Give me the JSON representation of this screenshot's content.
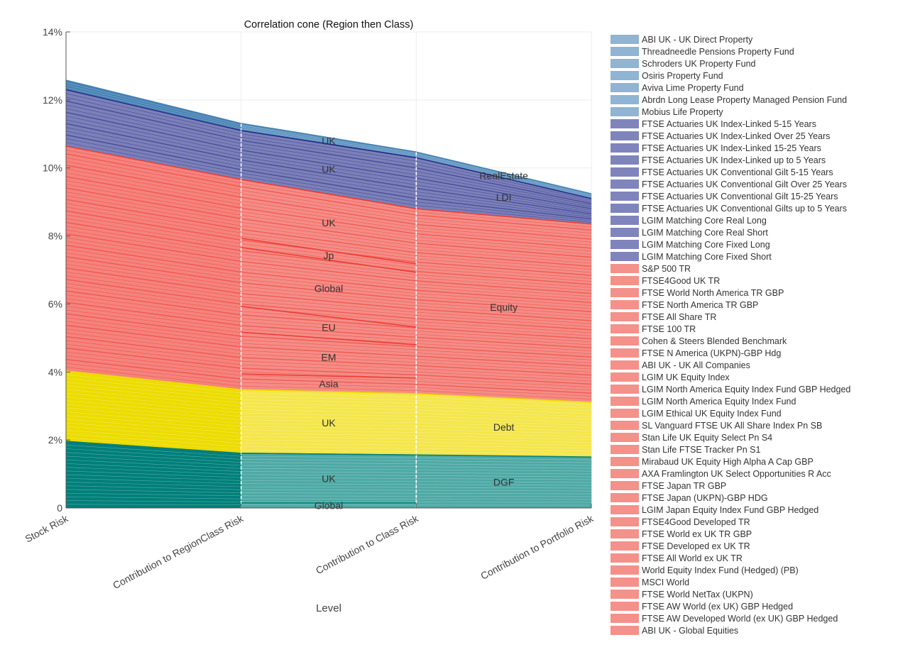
{
  "chart_data": {
    "type": "area",
    "stacked": true,
    "title": "Correlation cone (Region then Class)",
    "xlabel": "Level",
    "ylabel": "",
    "categories": [
      "Stock Risk",
      "Contribution to RegionClass Risk",
      "Contribution to Class Risk",
      "Contribution to Portfolio Risk"
    ],
    "ylim": [
      0,
      14
    ],
    "yticks": [
      0,
      2,
      4,
      6,
      8,
      10,
      12,
      14
    ],
    "ytick_labels": [
      "0",
      "2%",
      "4%",
      "6%",
      "8%",
      "10%",
      "12%",
      "14%"
    ],
    "grid": true,
    "legend_position": "right",
    "series": [
      {
        "name": "DGF",
        "color": "#007f7a",
        "color_light": "#4ea9a5",
        "values": [
          1.96,
          1.61,
          1.56,
          1.5
        ]
      },
      {
        "name": "Debt",
        "color": "#ecdc00",
        "color_light": "#f4e64c",
        "values": [
          2.07,
          1.87,
          1.8,
          1.61
        ]
      },
      {
        "name": "Equity",
        "color": "#f4837c",
        "color_light": "#f48c86",
        "line_color": "#ef3b33",
        "values": [
          6.61,
          6.18,
          5.44,
          5.24
        ]
      },
      {
        "name": "LDI",
        "color": "#7b80b8",
        "color_light": "#7b80b8",
        "line_color": "#262d86",
        "values": [
          1.66,
          1.44,
          1.5,
          0.75
        ]
      },
      {
        "name": "RealEstate",
        "color": "#4682b4",
        "color_light": "#5b93c0",
        "values": [
          0.28,
          0.21,
          0.17,
          0.14
        ]
      }
    ],
    "region_bands": [
      {
        "class": "DGF",
        "label": "Global",
        "values": [
          0.15,
          0.15
        ]
      },
      {
        "class": "DGF",
        "label": "UK",
        "values": [
          1.46,
          1.41
        ]
      },
      {
        "class": "Debt",
        "label": "UK",
        "values": [
          1.87,
          1.8
        ]
      },
      {
        "class": "Equity",
        "label": "Asia",
        "values": [
          0.46,
          0.46
        ]
      },
      {
        "class": "Equity",
        "label": "EM",
        "values": [
          1.23,
          0.98
        ]
      },
      {
        "class": "Equity",
        "label": "EU",
        "values": [
          0.76,
          0.52
        ]
      },
      {
        "class": "Equity",
        "label": "Global",
        "values": [
          1.73,
          1.61
        ]
      },
      {
        "class": "Equity",
        "label": "Jp",
        "values": [
          0.27,
          0.25
        ]
      },
      {
        "class": "Equity",
        "label": "UK",
        "values": [
          1.73,
          1.62
        ]
      },
      {
        "class": "LDI",
        "label": "UK",
        "values": [
          1.44,
          1.5
        ]
      },
      {
        "class": "RealEstate",
        "label": "UK",
        "values": [
          0.21,
          0.17
        ]
      }
    ],
    "legend": [
      {
        "label": "ABI UK - UK Direct Property",
        "color": "#8fb4d4"
      },
      {
        "label": "Threadneedle Pensions Property Fund",
        "color": "#8fb4d4"
      },
      {
        "label": "Schroders UK Property Fund",
        "color": "#8fb4d4"
      },
      {
        "label": "Osiris Property Fund",
        "color": "#8fb4d4"
      },
      {
        "label": "Aviva Lime Property Fund",
        "color": "#8fb4d4"
      },
      {
        "label": "Abrdn Long Lease Property Managed Pension Fund",
        "color": "#8fb4d4"
      },
      {
        "label": "Mobius Life Property",
        "color": "#8fb4d4"
      },
      {
        "label": "FTSE Actuaries UK Index-Linked 5-15 Years",
        "color": "#7f84bc"
      },
      {
        "label": "FTSE Actuaries UK Index-Linked Over 25 Years",
        "color": "#7f84bc"
      },
      {
        "label": "FTSE Actuaries UK Index-Linked 15-25 Years",
        "color": "#7f84bc"
      },
      {
        "label": "FTSE Actuaries UK Index-Linked up to 5 Years",
        "color": "#7f84bc"
      },
      {
        "label": "FTSE Actuaries UK Conventional Gilt 5-15 Years",
        "color": "#7f84bc"
      },
      {
        "label": "FTSE Actuaries UK Conventional Gilt Over 25 Years",
        "color": "#7f84bc"
      },
      {
        "label": "FTSE Actuaries UK Conventional Gilt 15-25 Years",
        "color": "#7f84bc"
      },
      {
        "label": "FTSE Actuaries UK Conventional Gilts up to 5 Years",
        "color": "#7f84bc"
      },
      {
        "label": "LGIM Matching Core Real Long",
        "color": "#7f84bc"
      },
      {
        "label": "LGIM Matching Core Real Short",
        "color": "#7f84bc"
      },
      {
        "label": "LGIM Matching Core Fixed Long",
        "color": "#7f84bc"
      },
      {
        "label": "LGIM Matching Core Fixed Short",
        "color": "#7f84bc"
      },
      {
        "label": "S&P 500 TR",
        "color": "#f4918a"
      },
      {
        "label": "FTSE4Good UK TR",
        "color": "#f4918a"
      },
      {
        "label": "FTSE World North America TR GBP",
        "color": "#f4918a"
      },
      {
        "label": "FTSE North America TR GBP",
        "color": "#f4918a"
      },
      {
        "label": "FTSE All Share TR",
        "color": "#f4918a"
      },
      {
        "label": "FTSE 100 TR",
        "color": "#f4918a"
      },
      {
        "label": "Cohen & Steers Blended Benchmark",
        "color": "#f4918a"
      },
      {
        "label": "FTSE N America (UKPN)-GBP Hdg",
        "color": "#f4918a"
      },
      {
        "label": "ABI UK - UK All Companies",
        "color": "#f4918a"
      },
      {
        "label": "LGIM UK Equity Index",
        "color": "#f4918a"
      },
      {
        "label": "LGIM North America Equity Index Fund GBP Hedged",
        "color": "#f4918a"
      },
      {
        "label": "LGIM North America Equity Index Fund",
        "color": "#f4918a"
      },
      {
        "label": "LGIM Ethical UK Equity Index Fund",
        "color": "#f4918a"
      },
      {
        "label": "SL Vanguard FTSE UK All Share Index Pn SB",
        "color": "#f4918a"
      },
      {
        "label": "Stan Life UK Equity Select Pn S4",
        "color": "#f4918a"
      },
      {
        "label": "Stan Life FTSE Tracker Pn S1",
        "color": "#f4918a"
      },
      {
        "label": "Mirabaud UK Equity High Alpha A Cap GBP",
        "color": "#f4918a"
      },
      {
        "label": "AXA Framlington UK Select Opportunities R Acc",
        "color": "#f4918a"
      },
      {
        "label": "FTSE Japan TR GBP",
        "color": "#f4918a"
      },
      {
        "label": "FTSE Japan (UKPN)-GBP HDG",
        "color": "#f4918a"
      },
      {
        "label": "LGIM Japan Equity Index Fund GBP Hedged",
        "color": "#f4918a"
      },
      {
        "label": "FTSE4Good Developed TR",
        "color": "#f4918a"
      },
      {
        "label": "FTSE World ex UK TR GBP",
        "color": "#f4918a"
      },
      {
        "label": "FTSE Developed ex UK TR",
        "color": "#f4918a"
      },
      {
        "label": "FTSE All World ex UK TR",
        "color": "#f4918a"
      },
      {
        "label": "World Equity Index Fund (Hedged) (PB)",
        "color": "#f4918a"
      },
      {
        "label": "MSCI World",
        "color": "#f4918a"
      },
      {
        "label": "FTSE World NetTax (UKPN)",
        "color": "#f4918a"
      },
      {
        "label": "FTSE AW World (ex UK) GBP Hedged",
        "color": "#f4918a"
      },
      {
        "label": "FTSE AW Developed World (ex UK) GBP Hedged",
        "color": "#f4918a"
      },
      {
        "label": "ABI UK - Global Equities",
        "color": "#f4918a"
      }
    ]
  }
}
